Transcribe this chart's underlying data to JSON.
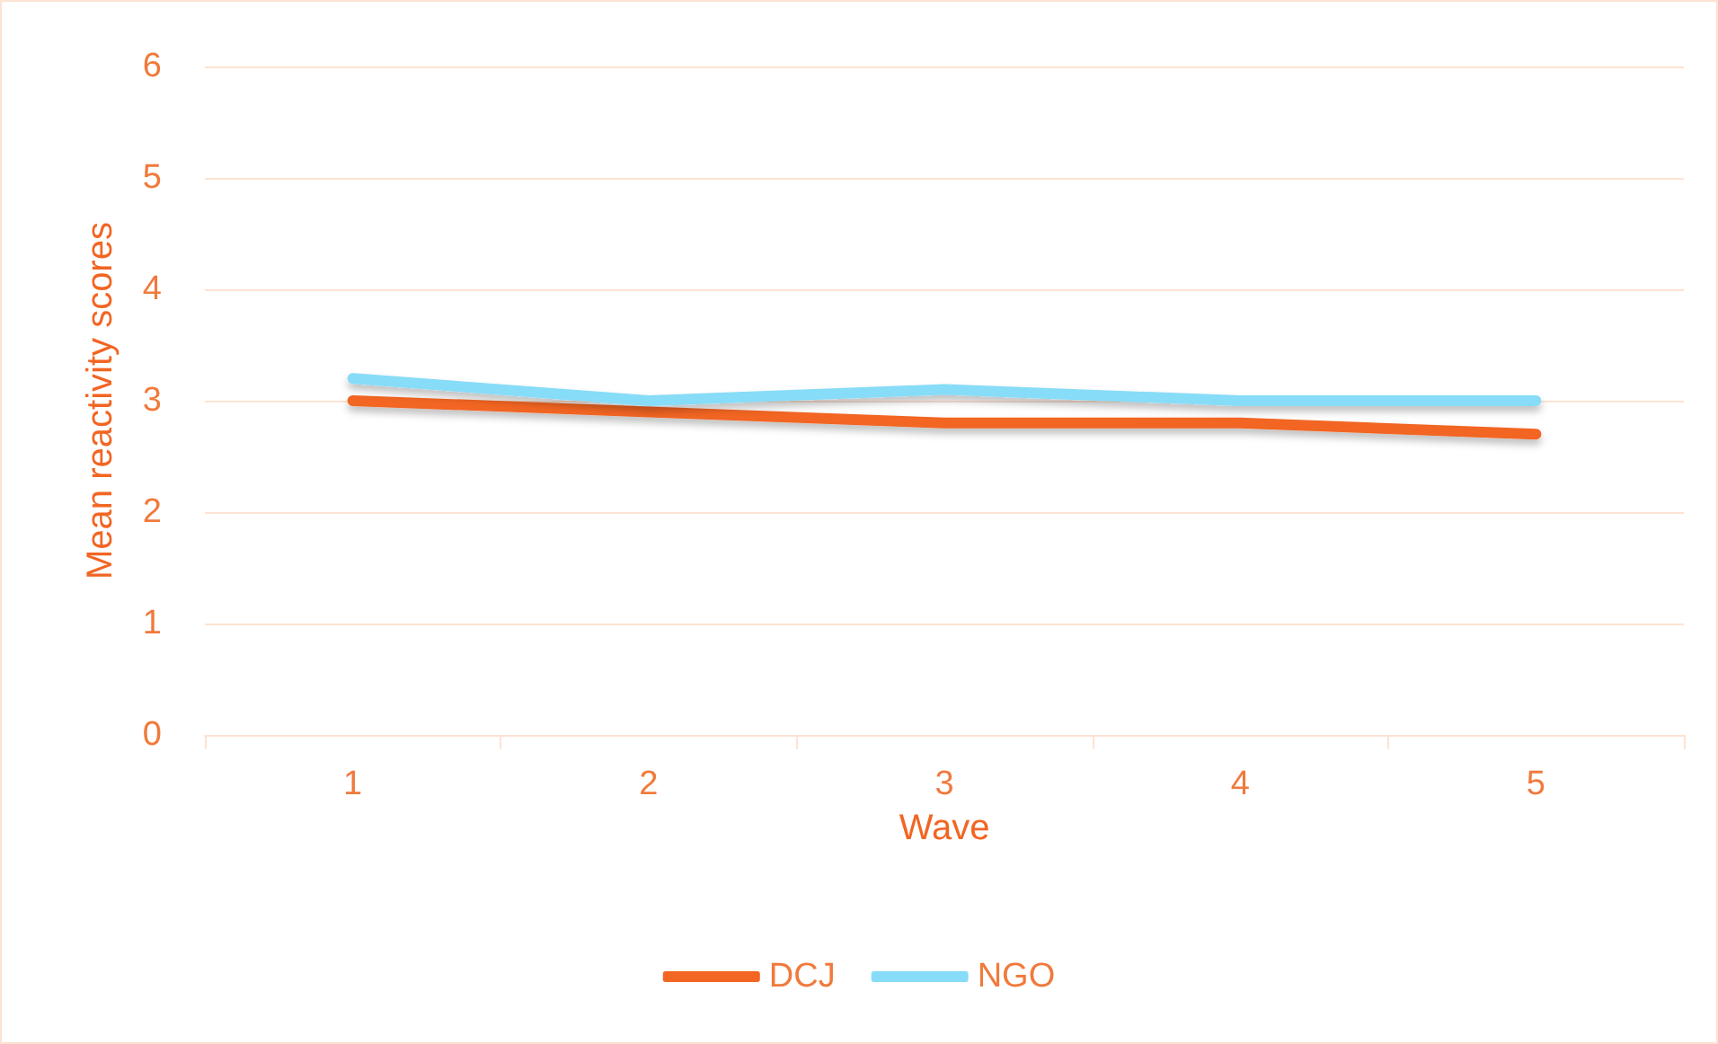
{
  "chart_data": {
    "type": "line",
    "xlabel": "Wave",
    "ylabel": "Mean reactivity scores",
    "categories": [
      "1",
      "2",
      "3",
      "4",
      "5"
    ],
    "series": [
      {
        "name": "DCJ",
        "color": "#f26522",
        "values": [
          3.0,
          2.9,
          2.8,
          2.8,
          2.7
        ]
      },
      {
        "name": "NGO",
        "color": "#87dcf8",
        "values": [
          3.2,
          3.0,
          3.1,
          3.0,
          3.0
        ]
      }
    ],
    "ylim": [
      0,
      6
    ],
    "yticks": [
      0,
      1,
      2,
      3,
      4,
      5,
      6
    ],
    "grid": "y",
    "legend": "bottom",
    "marker": "none",
    "line_style": "solid"
  }
}
